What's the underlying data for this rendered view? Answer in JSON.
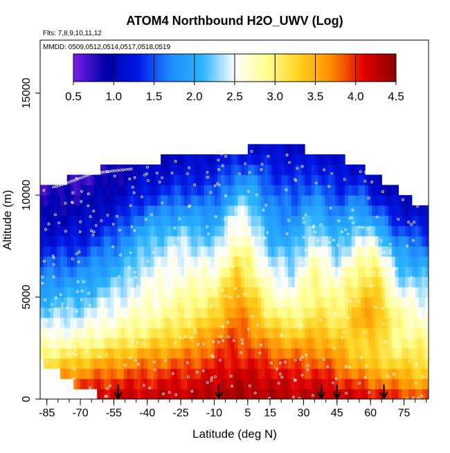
{
  "chart_data": {
    "type": "heatmap",
    "title": "ATOM4 Northbound H2O_UWV (Log)",
    "subtitle_flights": "Flts: 7,8,9,10,11,12",
    "subtitle_dates": "MMDD: 0509,0512,0514,0517,0518,0519",
    "xlabel": "Latitude (deg N)",
    "ylabel": "Altitude (m)",
    "xlim": [
      -88,
      86
    ],
    "ylim": [
      0,
      17600
    ],
    "x_ticks": [
      -85,
      -70,
      -55,
      -40,
      -25,
      -10,
      5,
      15,
      30,
      45,
      60,
      75
    ],
    "x_minor_step": 5,
    "y_ticks": [
      0,
      5000,
      10000,
      15000
    ],
    "colorbar": {
      "min": 0.5,
      "max": 4.5,
      "ticks": [
        0.5,
        1.0,
        1.5,
        2.0,
        2.5,
        3.0,
        3.5,
        4.0,
        4.5
      ],
      "tick_labels": [
        "0.5",
        "1.0",
        "1.5",
        "2.0",
        "2.5",
        "3.0",
        "3.5",
        "4.0",
        "4.5"
      ],
      "colors": [
        "#7a1fe8",
        "#0000a8",
        "#0018e6",
        "#1f8cff",
        "#2ab4ff",
        "#ffffff",
        "#ffff90",
        "#ffd21f",
        "#ff8c00",
        "#e00000",
        "#8b0000"
      ]
    },
    "altitude_bin_m": 500,
    "upper_boundary": [
      [
        -87,
        10400
      ],
      [
        -80,
        10600
      ],
      [
        -72,
        10900
      ],
      [
        -65,
        11200
      ],
      [
        -58,
        11300
      ],
      [
        -50,
        11400
      ],
      [
        -40,
        11500
      ],
      [
        -30,
        11900
      ],
      [
        -20,
        12000
      ],
      [
        -10,
        12100
      ],
      [
        0,
        12200
      ],
      [
        10,
        12300
      ],
      [
        20,
        12400
      ],
      [
        28,
        12300
      ],
      [
        38,
        12100
      ],
      [
        48,
        11800
      ],
      [
        56,
        11300
      ],
      [
        62,
        10900
      ],
      [
        68,
        10600
      ],
      [
        73,
        10200
      ],
      [
        78,
        9800
      ],
      [
        83,
        9500
      ]
    ],
    "lower_boundary": [
      [
        -87,
        1800
      ],
      [
        -82,
        1500
      ],
      [
        -76,
        1000
      ],
      [
        -70,
        600
      ],
      [
        -64,
        300
      ],
      [
        -58,
        100
      ],
      [
        -50,
        0
      ],
      [
        83,
        0
      ]
    ],
    "profile_control_points": [
      {
        "z": 0,
        "lats": [
          -88,
          -60,
          -40,
          -20,
          0,
          20,
          40,
          60,
          86
        ],
        "vals": [
          4.2,
          4.25,
          4.25,
          4.3,
          4.4,
          4.35,
          4.3,
          4.2,
          3.9
        ]
      },
      {
        "z": 1000,
        "lats": [
          -88,
          -60,
          -40,
          -20,
          0,
          20,
          40,
          60,
          86
        ],
        "vals": [
          3.6,
          3.9,
          4.0,
          4.1,
          4.25,
          4.15,
          4.05,
          3.7,
          3.4
        ]
      },
      {
        "z": 2000,
        "lats": [
          -88,
          -60,
          -40,
          -20,
          0,
          20,
          40,
          60,
          86
        ],
        "vals": [
          3.0,
          3.4,
          3.65,
          3.8,
          4.05,
          3.85,
          3.75,
          3.2,
          3.1
        ]
      },
      {
        "z": 3000,
        "lats": [
          -88,
          -70,
          -55,
          -40,
          -20,
          -5,
          5,
          20,
          40,
          52,
          60,
          70,
          86
        ],
        "vals": [
          2.6,
          2.7,
          2.9,
          3.1,
          3.4,
          3.9,
          3.8,
          3.4,
          3.45,
          3.2,
          3.4,
          2.9,
          2.9
        ]
      },
      {
        "z": 4000,
        "lats": [
          -88,
          -70,
          -55,
          -40,
          -25,
          -10,
          0,
          5,
          15,
          25,
          35,
          45,
          55,
          62,
          72,
          86
        ],
        "vals": [
          2.3,
          2.4,
          2.6,
          2.8,
          3.0,
          3.2,
          3.8,
          3.6,
          3.1,
          2.9,
          3.2,
          3.0,
          3.5,
          3.6,
          2.9,
          2.6
        ]
      },
      {
        "z": 5000,
        "lats": [
          -88,
          -70,
          -55,
          -40,
          -25,
          -10,
          0,
          5,
          15,
          25,
          35,
          45,
          55,
          62,
          72,
          86
        ],
        "vals": [
          2.0,
          2.1,
          2.4,
          2.6,
          2.8,
          3.0,
          3.6,
          3.4,
          2.8,
          2.6,
          3.0,
          2.8,
          3.3,
          3.4,
          2.6,
          2.4
        ]
      },
      {
        "z": 6000,
        "lats": [
          -88,
          -70,
          -55,
          -40,
          -25,
          -10,
          0,
          5,
          15,
          25,
          35,
          45,
          55,
          62,
          72,
          86
        ],
        "vals": [
          1.7,
          1.8,
          2.1,
          2.5,
          2.6,
          2.7,
          3.3,
          3.1,
          2.5,
          2.4,
          2.9,
          2.6,
          3.0,
          3.2,
          2.3,
          2.1
        ]
      },
      {
        "z": 7000,
        "lats": [
          -88,
          -70,
          -55,
          -40,
          -25,
          -10,
          0,
          5,
          15,
          25,
          35,
          45,
          55,
          62,
          72,
          86
        ],
        "vals": [
          1.4,
          1.5,
          1.8,
          2.3,
          2.5,
          2.4,
          3.0,
          2.9,
          2.3,
          2.2,
          2.7,
          2.3,
          2.7,
          2.9,
          2.0,
          1.8
        ]
      },
      {
        "z": 8000,
        "lats": [
          -88,
          -70,
          -55,
          -40,
          -25,
          -10,
          0,
          5,
          15,
          25,
          35,
          45,
          55,
          62,
          72,
          86
        ],
        "vals": [
          1.1,
          1.2,
          1.5,
          2.1,
          2.3,
          2.1,
          2.7,
          2.6,
          2.0,
          1.9,
          2.4,
          2.0,
          2.4,
          2.3,
          1.6,
          1.4
        ]
      },
      {
        "z": 9000,
        "lats": [
          -88,
          -70,
          -55,
          -40,
          -25,
          -10,
          0,
          5,
          15,
          25,
          35,
          45,
          55,
          62,
          72,
          86
        ],
        "vals": [
          0.95,
          1.0,
          1.2,
          1.7,
          1.9,
          1.8,
          2.5,
          2.5,
          1.8,
          1.7,
          2.1,
          1.7,
          2.0,
          1.7,
          1.2,
          1.1
        ]
      },
      {
        "z": 10000,
        "lats": [
          -88,
          -70,
          -55,
          -40,
          -25,
          -10,
          0,
          5,
          15,
          25,
          35,
          45,
          55,
          62,
          72,
          86
        ],
        "vals": [
          0.8,
          0.85,
          1.0,
          1.3,
          1.5,
          1.5,
          2.0,
          2.1,
          1.6,
          1.5,
          1.7,
          1.4,
          1.6,
          1.2,
          1.0,
          0.95
        ]
      },
      {
        "z": 11000,
        "lats": [
          -88,
          -70,
          -55,
          -40,
          -25,
          -10,
          0,
          5,
          15,
          25,
          35,
          45,
          55,
          62,
          72,
          86
        ],
        "vals": [
          0.65,
          0.7,
          0.85,
          1.1,
          1.2,
          1.3,
          1.6,
          1.7,
          1.4,
          1.3,
          1.4,
          1.2,
          1.2,
          0.9,
          0.75,
          0.7
        ]
      },
      {
        "z": 12000,
        "lats": [
          -88,
          -60,
          -40,
          -20,
          0,
          20,
          40,
          60,
          86
        ],
        "vals": [
          0.6,
          0.7,
          0.95,
          1.05,
          1.2,
          1.15,
          1.1,
          0.9,
          0.7
        ]
      },
      {
        "z": 13000,
        "lats": [
          -88,
          86
        ],
        "vals": [
          1.0,
          1.0
        ]
      }
    ],
    "flight_date_arrows": [
      -53,
      -8,
      38,
      45,
      66
    ],
    "annotations": [
      "Flts: 7,8,9,10,11,12",
      "MMDD: 0509,0512,0514,0517,0518,0519"
    ]
  }
}
